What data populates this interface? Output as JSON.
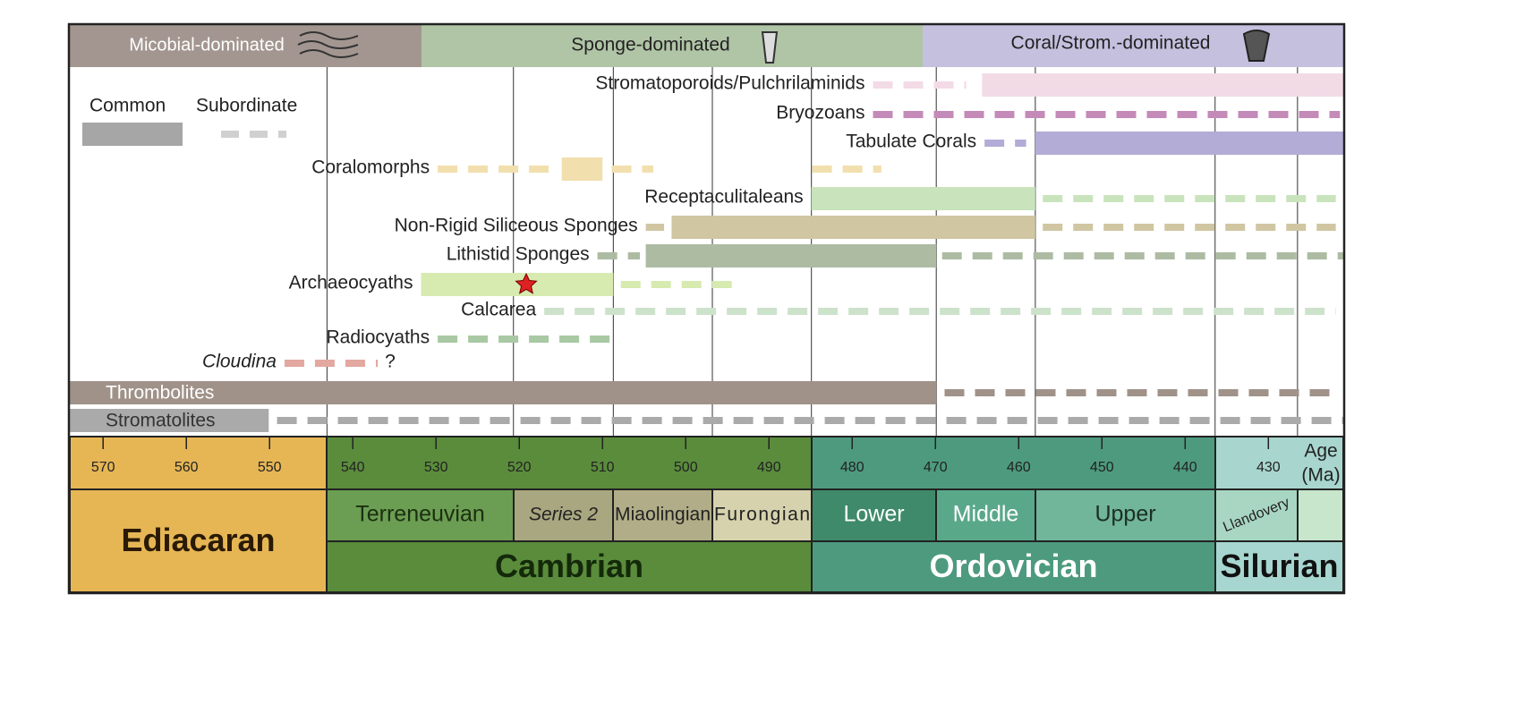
{
  "header": {
    "bands": [
      "Micobial-dominated",
      "Sponge-dominated",
      "Coral/Strom.-dominated"
    ]
  },
  "legend": {
    "solid": "Common",
    "dashed": "Subordinate"
  },
  "xlim": [
    574,
    421
  ],
  "taxa": [
    {
      "name": "Stromatoporoids/Pulchrilaminids",
      "color": "#f3dbe6",
      "dashed": [
        [
          477.5,
          466.3
        ]
      ],
      "solid": [
        [
          464.4,
          421
        ]
      ]
    },
    {
      "name": "Bryozoans",
      "color": "#c48ab8",
      "dashed": [
        [
          477.5,
          421.4
        ]
      ],
      "solid": []
    },
    {
      "name": "Tabulate Corals",
      "color": "#b3acd6",
      "dashed": [
        [
          464.1,
          459.1
        ]
      ],
      "solid": [
        [
          458.0,
          421
        ]
      ]
    },
    {
      "name": "Coralomorphs",
      "color": "#f2dfae",
      "dashed": [
        [
          529.8,
          515.7
        ],
        [
          508.9,
          503.9
        ],
        [
          484.8,
          476.5
        ]
      ],
      "solid": [
        [
          514.9,
          510.0
        ]
      ]
    },
    {
      "name": "Receptaculitaleans",
      "color": "#c9e4bd",
      "dashed": [
        [
          457.1,
          421.9
        ]
      ],
      "solid": [
        [
          484.9,
          458.0
        ]
      ]
    },
    {
      "name": "Non-Rigid Siliceous Sponges",
      "color": "#d0c6a2",
      "dashed": [
        [
          504.8,
          502.6
        ],
        [
          457.1,
          421.9
        ]
      ],
      "solid": [
        [
          501.7,
          458.0
        ]
      ]
    },
    {
      "name": "Lithistid Sponges",
      "color": "#adbba3",
      "dashed": [
        [
          510.6,
          505.5
        ],
        [
          469.2,
          421
        ]
      ],
      "solid": [
        [
          504.8,
          469.9
        ]
      ]
    },
    {
      "name": "Archaeocyaths",
      "color": "#d7eab0",
      "dashed": [
        [
          507.8,
          493.6
        ]
      ],
      "solid": [
        [
          531.8,
          508.7
        ]
      ]
    },
    {
      "name": "Calcarea",
      "color": "#cde2cb",
      "dashed": [
        [
          517.0,
          421.9
        ]
      ],
      "solid": []
    },
    {
      "name": "Radiocyaths",
      "color": "#a8c9a3",
      "dashed": [
        [
          529.8,
          509.1
        ]
      ],
      "solid": []
    },
    {
      "name": "Cloudina",
      "color": "#e3a8a0",
      "dashed": [
        [
          548.2,
          537.0
        ]
      ],
      "solid": [],
      "note": "?"
    },
    {
      "name": "Thrombolites",
      "color": "#a09289",
      "dashed": [
        [
          468.9,
          421.9
        ]
      ],
      "solid": [
        [
          574,
          469.9
        ]
      ]
    },
    {
      "name": "Stromatolites",
      "color": "#aaaaaa",
      "dashed": [
        [
          549.1,
          421
        ]
      ],
      "solid": [
        [
          574,
          550.1
        ]
      ]
    }
  ],
  "boundaries": [
    543.1,
    520.7,
    508.7,
    496.8,
    484.9,
    469.9,
    458.0,
    436.4,
    426.5
  ],
  "ticks": [
    570,
    560,
    550,
    540,
    530,
    520,
    510,
    500,
    490,
    480,
    470,
    460,
    450,
    440,
    430
  ],
  "axis_label": [
    "Age",
    "(Ma)"
  ],
  "epochs": [
    "Terreneuvian",
    "Series 2",
    "Miaolingian",
    "Furongian",
    "Lower",
    "Middle",
    "Upper",
    "Llandovery"
  ],
  "periods": [
    "Ediacaran",
    "Cambrian",
    "Ordovician",
    "Silurian"
  ]
}
